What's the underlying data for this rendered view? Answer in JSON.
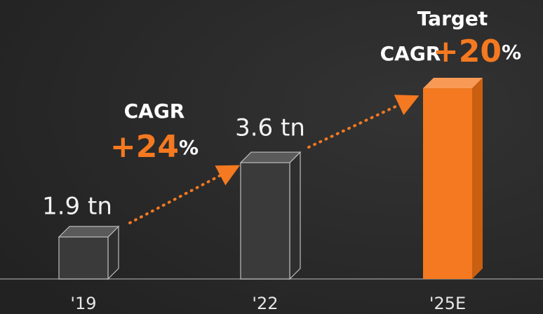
{
  "chart_data": {
    "type": "bar",
    "categories": [
      "'19",
      "'22",
      "'25E"
    ],
    "values": [
      1.9,
      3.6,
      5.3
    ],
    "value_labels": [
      "1.9 tn",
      "3.6 tn",
      null
    ],
    "colors": [
      "#3a3a3a",
      "#3a3a3a",
      "#f47920"
    ],
    "ylim": [
      0.94,
      7
    ],
    "annotations": [
      {
        "lines": [
          "CAGR"
        ],
        "highlight": "+24",
        "suffix": "%"
      },
      {
        "lines": [
          "Target",
          "CAGR"
        ],
        "highlight": "+20",
        "suffix": "%"
      }
    ]
  }
}
